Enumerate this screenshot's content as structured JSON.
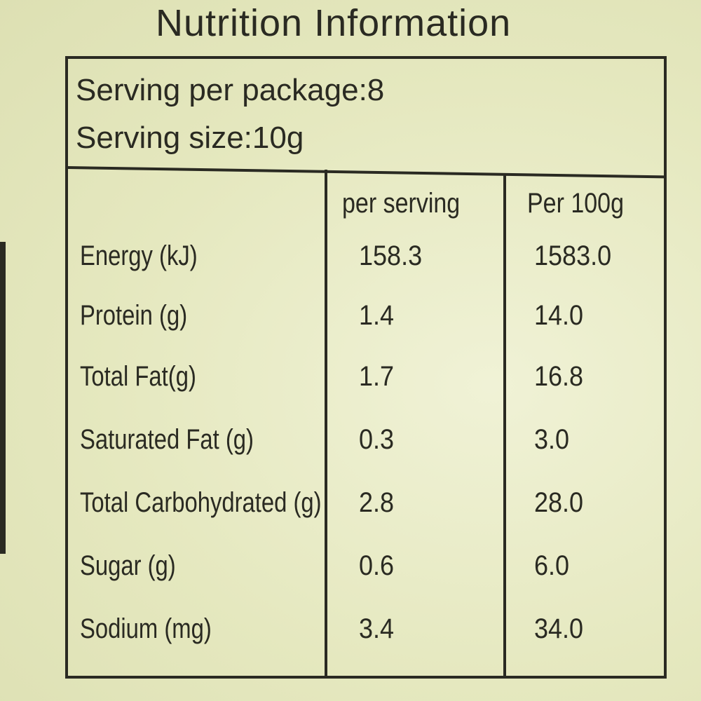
{
  "header": {
    "title": "Nutrition Information"
  },
  "serving": [
    "Serving per package:8",
    "Serving size:10g"
  ],
  "table": {
    "columns": [
      "per serving",
      "Per 100g"
    ],
    "rows": [
      [
        "Energy (kJ)",
        "158.3",
        "1583.0"
      ],
      [
        "Protein (g)",
        "1.4",
        "14.0"
      ],
      [
        "Total Fat(g)",
        "1.7",
        "16.8"
      ],
      [
        "Saturated Fat (g)",
        "0.3",
        "3.0"
      ],
      [
        "Total Carbohydrated (g)",
        "2.8",
        "28.0"
      ],
      [
        "Sugar (g)",
        "0.6",
        "6.0"
      ],
      [
        "Sodium (mg)",
        "3.4",
        "34.0"
      ]
    ]
  }
}
